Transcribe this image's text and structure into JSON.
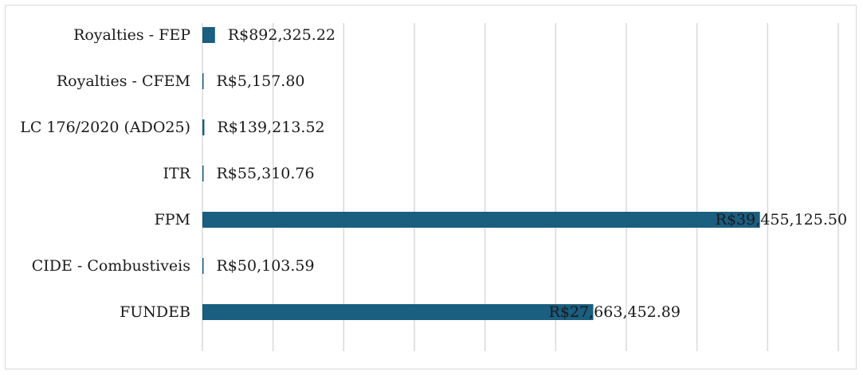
{
  "colors": {
    "bar": "#1a5e80",
    "grid": "#d9d9d9",
    "text": "#1a1a1a",
    "border": "#d9d9d9"
  },
  "chart_data": {
    "type": "bar",
    "orientation": "horizontal",
    "title": "",
    "xlabel": "",
    "ylabel": "",
    "grid": true,
    "legend": "none",
    "xlim": [
      0,
      45000000
    ],
    "categories": [
      "Royalties - FEP",
      "Royalties - CFEM",
      "LC 176/2020 (ADO25)",
      "ITR",
      "FPM",
      "CIDE - Combustiveis",
      "FUNDEB"
    ],
    "values": [
      892325.22,
      5157.8,
      139213.52,
      55310.76,
      39455125.5,
      50103.59,
      27663452.89
    ],
    "data_labels": [
      "R$892,325.22",
      "R$5,157.80",
      "R$139,213.52",
      "R$55,310.76",
      "R$39,455,125.50",
      "R$50,103.59",
      "R$27,663,452.89"
    ]
  }
}
